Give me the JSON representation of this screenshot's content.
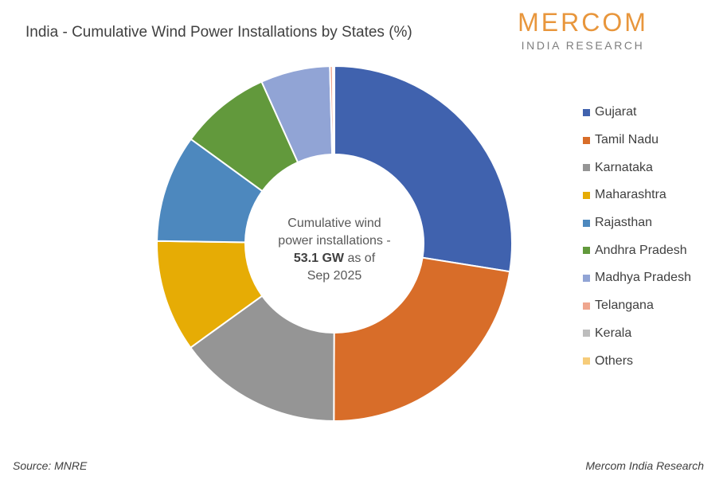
{
  "title": "India - Cumulative Wind Power Installations by States (%)",
  "logo": {
    "main": "MERCOM",
    "sub": "INDIA RESEARCH"
  },
  "center_label": {
    "line1": "Cumulative wind",
    "line2": "power installations -",
    "value": "53.1 GW",
    "line3_suffix": " as of",
    "line4": "Sep 2025"
  },
  "source": "Source: MNRE",
  "credit": "Mercom India Research",
  "chart_data": {
    "type": "pie",
    "donut": true,
    "title": "India - Cumulative Wind Power Installations by States (%)",
    "legend_position": "right",
    "categories": [
      "Gujarat",
      "Tamil Nadu",
      "Karnataka",
      "Maharashtra",
      "Rajasthan",
      "Andhra Pradesh",
      "Madhya Pradesh",
      "Telangana",
      "Kerala",
      "Others"
    ],
    "values": [
      27.0,
      22.1,
      14.7,
      10.0,
      9.6,
      8.1,
      6.2,
      0.25,
      0.1,
      0.05
    ],
    "colors": [
      "#4062AE",
      "#D86D29",
      "#959595",
      "#E6AC05",
      "#4D88BE",
      "#62993C",
      "#91A4D5",
      "#EFA68E",
      "#BDBDBD",
      "#F6CC7A"
    ]
  }
}
